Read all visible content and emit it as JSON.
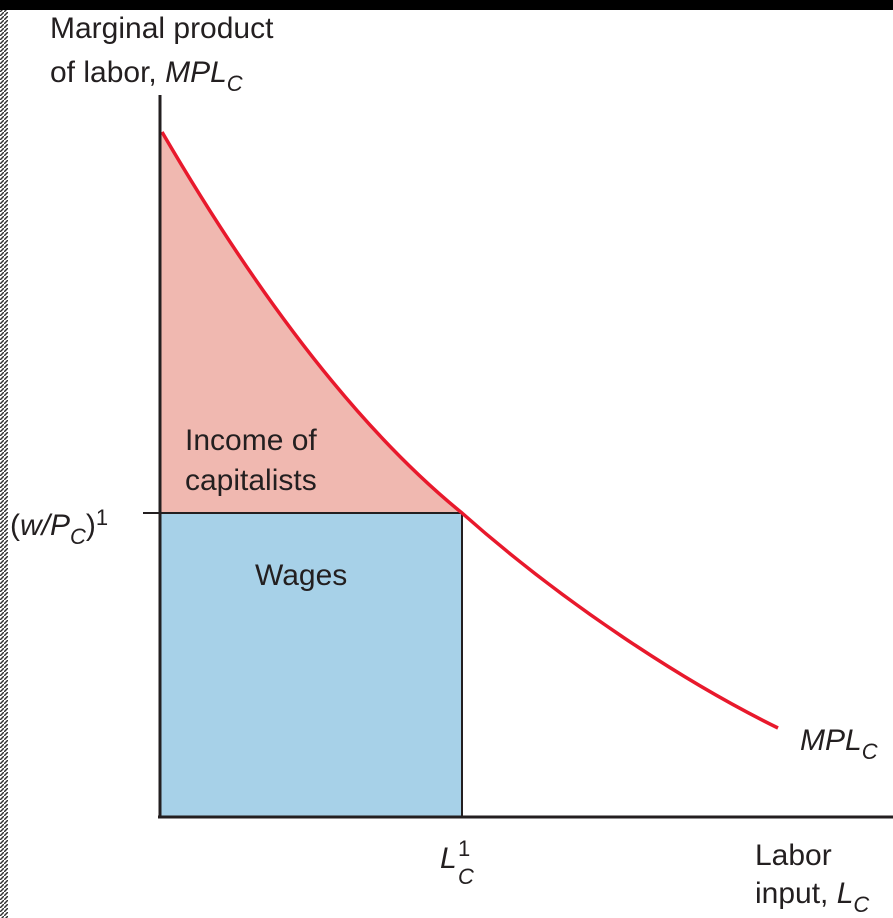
{
  "y_axis_label": {
    "line1": "Marginal product",
    "line2": "of labor, ",
    "symbol": "MPL",
    "subscript": "C"
  },
  "x_axis_label": {
    "line1": "Labor",
    "line2": "input, ",
    "symbol": "L",
    "subscript": "C"
  },
  "y_tick": {
    "open": "(",
    "symbol": "w/P",
    "subscript": "C",
    "close": ")",
    "superscript": "1"
  },
  "x_tick": {
    "symbol": "L",
    "subscript": "C",
    "superscript": "1"
  },
  "curve_label": {
    "symbol": "MPL",
    "subscript": "C"
  },
  "regions": [
    {
      "lines": [
        "Income of",
        "capitalists"
      ]
    },
    {
      "lines": [
        "Wages"
      ]
    }
  ]
}
